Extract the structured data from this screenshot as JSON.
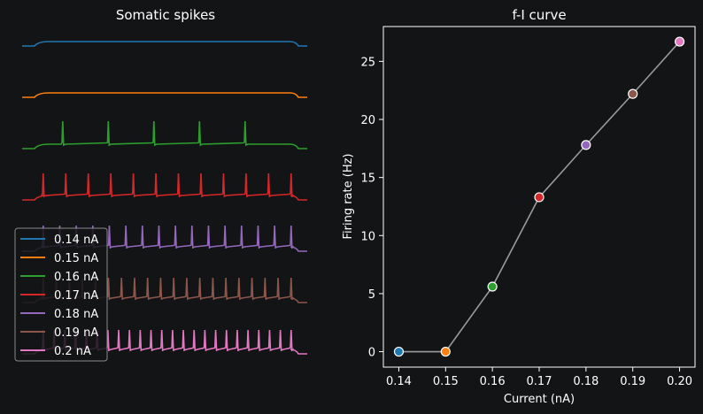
{
  "chart_data": [
    {
      "type": "line",
      "title": "Somatic spikes",
      "xlabel": "",
      "ylabel": "",
      "axes_visible": false,
      "series": [
        {
          "name": "0.14 nA",
          "color": "#1f77b4",
          "current_nA": 0.14,
          "spike_count": 0
        },
        {
          "name": "0.15 nA",
          "color": "#ff7f0e",
          "current_nA": 0.15,
          "spike_count": 0
        },
        {
          "name": "0.16 nA",
          "color": "#2ca02c",
          "current_nA": 0.16,
          "spike_count": 5
        },
        {
          "name": "0.17 nA",
          "color": "#d62728",
          "current_nA": 0.17,
          "spike_count": 12
        },
        {
          "name": "0.18 nA",
          "color": "#9467bd",
          "current_nA": 0.18,
          "spike_count": 16
        },
        {
          "name": "0.19 nA",
          "color": "#8c564b",
          "current_nA": 0.19,
          "spike_count": 20
        },
        {
          "name": "0.2 nA",
          "color": "#e377c2",
          "current_nA": 0.2,
          "spike_count": 24
        }
      ],
      "legend_position": "lower-left"
    },
    {
      "type": "line",
      "title": "f-I curve",
      "xlabel": "Current (nA)",
      "ylabel": "Firing rate (Hz)",
      "xlim": [
        0.1367,
        0.2033
      ],
      "ylim": [
        -1.33,
        28.0
      ],
      "x_ticks": [
        "0.14",
        "0.15",
        "0.16",
        "0.17",
        "0.18",
        "0.19",
        "0.20"
      ],
      "y_ticks": [
        "0",
        "5",
        "10",
        "15",
        "20",
        "25"
      ],
      "x_tick_values": [
        0.14,
        0.15,
        0.16,
        0.17,
        0.18,
        0.19,
        0.2
      ],
      "y_tick_values": [
        0,
        5,
        10,
        15,
        20,
        25
      ],
      "line_color": "#9a9a9a",
      "x": [
        0.14,
        0.15,
        0.16,
        0.17,
        0.18,
        0.19,
        0.2
      ],
      "y": [
        0,
        0,
        5.6,
        13.3,
        17.8,
        22.2,
        26.7
      ],
      "point_colors": [
        "#1f77b4",
        "#ff7f0e",
        "#2ca02c",
        "#d62728",
        "#9467bd",
        "#8c564b",
        "#e377c2"
      ],
      "grid": false
    }
  ]
}
